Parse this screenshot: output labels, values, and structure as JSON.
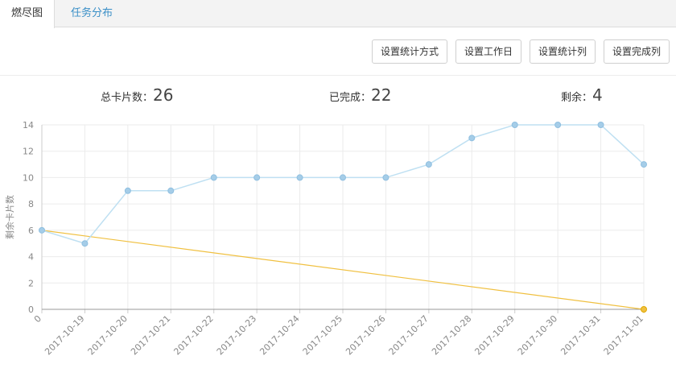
{
  "tabs": [
    {
      "label": "燃尽图",
      "active": true
    },
    {
      "label": "任务分布",
      "active": false
    }
  ],
  "toolbar": {
    "btn_stat_method": "设置统计方式",
    "btn_workday": "设置工作日",
    "btn_stat_column": "设置统计列",
    "btn_done_column": "设置完成列"
  },
  "stats": {
    "total_label": "总卡片数：",
    "total_value": "26",
    "done_label": "已完成：",
    "done_value": "22",
    "remain_label": "剩余：",
    "remain_value": "4"
  },
  "colors": {
    "actual_line": "#bfe0f2",
    "actual_point": "#a5cde8",
    "ideal_line": "#f0c040",
    "grid": "#ebebeb",
    "axis": "#cccccc",
    "link": "#3a8fc7"
  },
  "chart_data": {
    "type": "line",
    "ylabel": "剩余卡片数",
    "ylim": [
      0,
      14
    ],
    "yticks": [
      "0",
      "2",
      "4",
      "6",
      "8",
      "10",
      "12",
      "14"
    ],
    "categories": [
      "0",
      "2017-10-19",
      "2017-10-20",
      "2017-10-21",
      "2017-10-22",
      "2017-10-23",
      "2017-10-24",
      "2017-10-25",
      "2017-10-26",
      "2017-10-27",
      "2017-10-28",
      "2017-10-29",
      "2017-10-30",
      "2017-10-31",
      "2017-11-01"
    ],
    "series": [
      {
        "values": [
          6,
          5,
          9,
          9,
          10,
          10,
          10,
          10,
          10,
          11,
          13,
          14,
          14,
          14,
          11
        ]
      },
      {
        "values": [
          6,
          null,
          null,
          null,
          null,
          null,
          null,
          null,
          null,
          null,
          null,
          null,
          null,
          null,
          0
        ]
      }
    ],
    "grid": true
  }
}
